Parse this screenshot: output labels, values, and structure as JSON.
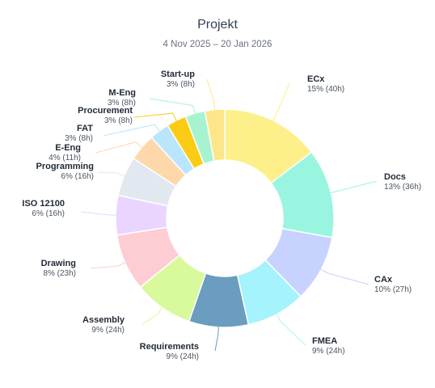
{
  "title": "Projekt",
  "subtitle": "4 Nov 2025 – 20 Jan 2026",
  "chart_data": {
    "type": "pie",
    "donut": true,
    "title": "Projekt",
    "subtitle": "4 Nov 2025 – 20 Jan 2026",
    "slices": [
      {
        "name": "ECx",
        "label": "15% (40h)",
        "hours": 40,
        "percent": 15,
        "color": "#fdf08a"
      },
      {
        "name": "Docs",
        "label": "13% (36h)",
        "hours": 36,
        "percent": 13,
        "color": "#99f5e0"
      },
      {
        "name": "CAx",
        "label": "10% (27h)",
        "hours": 27,
        "percent": 10,
        "color": "#c7d2fe"
      },
      {
        "name": "FMEA",
        "label": "9% (24h)",
        "hours": 24,
        "percent": 9,
        "color": "#a5f3fc"
      },
      {
        "name": "Requirements",
        "label": "9% (24h)",
        "hours": 24,
        "percent": 9,
        "color": "#6a9dbf"
      },
      {
        "name": "Assembly",
        "label": "9% (24h)",
        "hours": 24,
        "percent": 9,
        "color": "#d9f99d"
      },
      {
        "name": "Drawing",
        "label": "8% (23h)",
        "hours": 23,
        "percent": 8,
        "color": "#fecdd3"
      },
      {
        "name": "ISO 12100",
        "label": "6% (16h)",
        "hours": 16,
        "percent": 6,
        "color": "#e9d5ff"
      },
      {
        "name": "Programming",
        "label": "6% (16h)",
        "hours": 16,
        "percent": 6,
        "color": "#e2e8f0"
      },
      {
        "name": "E-Eng",
        "label": "4% (11h)",
        "hours": 11,
        "percent": 4,
        "color": "#fed7aa"
      },
      {
        "name": "FAT",
        "label": "3% (8h)",
        "hours": 8,
        "percent": 3,
        "color": "#bae6fd"
      },
      {
        "name": "Procurement",
        "label": "3% (8h)",
        "hours": 8,
        "percent": 3,
        "color": "#facc15"
      },
      {
        "name": "M-Eng",
        "label": "3% (8h)",
        "hours": 8,
        "percent": 3,
        "color": "#a7f3d0"
      },
      {
        "name": "Start-up",
        "label": "3% (8h)",
        "hours": 8,
        "percent": 3,
        "color": "#fde68a"
      }
    ]
  }
}
